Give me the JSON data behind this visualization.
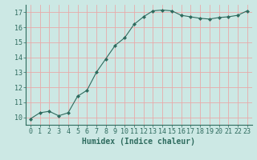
{
  "x": [
    0,
    1,
    2,
    3,
    4,
    5,
    6,
    7,
    8,
    9,
    10,
    11,
    12,
    13,
    14,
    15,
    16,
    17,
    18,
    19,
    20,
    21,
    22,
    23
  ],
  "y": [
    9.9,
    10.3,
    10.4,
    10.1,
    10.3,
    11.4,
    11.8,
    13.0,
    13.9,
    14.8,
    15.3,
    16.2,
    16.7,
    17.1,
    17.15,
    17.1,
    16.8,
    16.7,
    16.6,
    16.55,
    16.65,
    16.7,
    16.8,
    17.1
  ],
  "line_color": "#2e6b5e",
  "marker": "D",
  "marker_size": 2.0,
  "bg_color": "#cce8e4",
  "grid_color": "#e8aaaa",
  "title": "",
  "xlabel": "Humidex (Indice chaleur)",
  "xlabel_fontsize": 7,
  "tick_fontsize": 6,
  "ylim": [
    9.5,
    17.5
  ],
  "yticks": [
    10,
    11,
    12,
    13,
    14,
    15,
    16,
    17
  ],
  "xlim": [
    -0.5,
    23.5
  ],
  "xticks": [
    0,
    1,
    2,
    3,
    4,
    5,
    6,
    7,
    8,
    9,
    10,
    11,
    12,
    13,
    14,
    15,
    16,
    17,
    18,
    19,
    20,
    21,
    22,
    23
  ]
}
